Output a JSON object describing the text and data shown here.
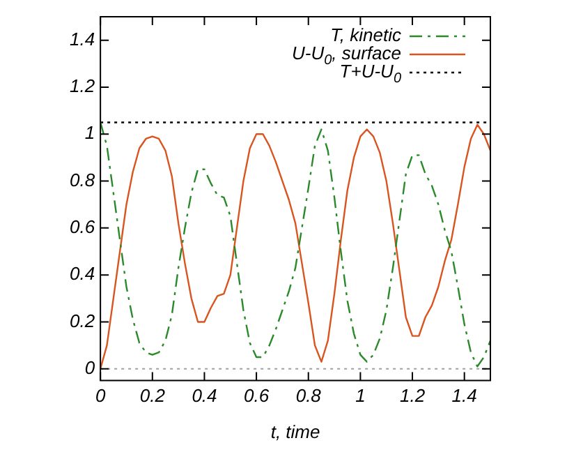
{
  "chart_data": {
    "type": "line",
    "xlabel": "t, time",
    "legend": "top right",
    "grid": false,
    "xlim": [
      0,
      1.5
    ],
    "ylim": [
      -0.05,
      1.5
    ],
    "xticks": [
      0,
      0.2,
      0.4,
      0.6,
      0.8,
      1,
      1.2,
      1.4
    ],
    "yticks": [
      0,
      0.2,
      0.4,
      0.6,
      0.8,
      1,
      1.2,
      1.4
    ],
    "x": [
      0,
      0.025,
      0.05,
      0.075,
      0.1,
      0.125,
      0.15,
      0.175,
      0.2,
      0.225,
      0.25,
      0.275,
      0.3,
      0.325,
      0.35,
      0.375,
      0.4,
      0.425,
      0.45,
      0.475,
      0.5,
      0.525,
      0.55,
      0.575,
      0.6,
      0.625,
      0.65,
      0.675,
      0.7,
      0.725,
      0.75,
      0.775,
      0.8,
      0.825,
      0.85,
      0.875,
      0.9,
      0.925,
      0.95,
      0.975,
      1,
      1.025,
      1.05,
      1.075,
      1.1,
      1.125,
      1.15,
      1.175,
      1.2,
      1.225,
      1.25,
      1.275,
      1.3,
      1.325,
      1.35,
      1.375,
      1.4,
      1.425,
      1.45,
      1.475,
      1.5
    ],
    "series": [
      {
        "name": "T, kinetic",
        "color": "#2a8a2a",
        "line_style": "dashdot",
        "values": [
          1.05,
          0.95,
          0.75,
          0.55,
          0.35,
          0.21,
          0.11,
          0.07,
          0.06,
          0.07,
          0.12,
          0.23,
          0.43,
          0.6,
          0.75,
          0.85,
          0.85,
          0.79,
          0.74,
          0.73,
          0.65,
          0.45,
          0.25,
          0.11,
          0.05,
          0.05,
          0.1,
          0.17,
          0.25,
          0.33,
          0.43,
          0.6,
          0.77,
          0.95,
          1.02,
          0.93,
          0.73,
          0.5,
          0.29,
          0.15,
          0.06,
          0.03,
          0.06,
          0.13,
          0.25,
          0.43,
          0.63,
          0.83,
          0.91,
          0.91,
          0.83,
          0.78,
          0.7,
          0.59,
          0.5,
          0.35,
          0.19,
          0.07,
          0.01,
          0.05,
          0.12
        ]
      },
      {
        "name": "U-U$_{0}$, surface",
        "color": "#d9541e",
        "line_style": "solid",
        "values": [
          0,
          0.1,
          0.3,
          0.5,
          0.7,
          0.84,
          0.94,
          0.98,
          0.99,
          0.98,
          0.93,
          0.82,
          0.62,
          0.45,
          0.3,
          0.2,
          0.2,
          0.26,
          0.31,
          0.32,
          0.4,
          0.6,
          0.8,
          0.94,
          1.0,
          1.0,
          0.95,
          0.88,
          0.8,
          0.72,
          0.62,
          0.45,
          0.28,
          0.1,
          0.03,
          0.12,
          0.32,
          0.55,
          0.76,
          0.9,
          0.99,
          1.02,
          0.99,
          0.92,
          0.8,
          0.62,
          0.42,
          0.22,
          0.14,
          0.14,
          0.22,
          0.27,
          0.35,
          0.46,
          0.55,
          0.7,
          0.86,
          0.98,
          1.04,
          1.0,
          0.93
        ]
      },
      {
        "name": "T+U-U$_{0}$",
        "color": "#000000",
        "line_style": "dotted",
        "x": [
          0,
          1.5
        ],
        "values": [
          1.05,
          1.05
        ]
      }
    ],
    "ref_lines": [
      {
        "axis": "y",
        "value": 0,
        "color": "#a0a0a0",
        "line_style": "dotted"
      }
    ]
  }
}
